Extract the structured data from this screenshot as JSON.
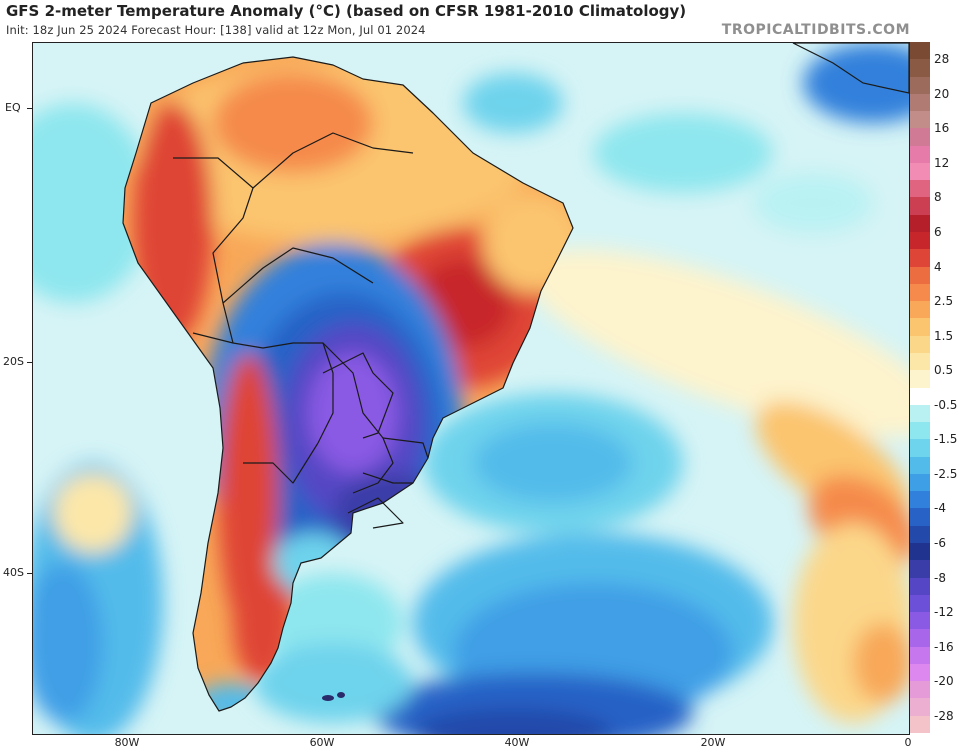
{
  "header": {
    "title": "GFS 2-meter Temperature Anomaly (°C) (based on CFSR 1981-2010 Climatology)",
    "subtitle": "Init: 18z Jun 25 2024   Forecast Hour: [138]   valid at 12z Mon, Jul 01 2024",
    "brand": "TROPICALTIDBITS.COM"
  },
  "map": {
    "lat_labels": [
      "EQ",
      "20S",
      "40S"
    ],
    "lon_labels": [
      "80W",
      "60W",
      "40W",
      "20W",
      "0"
    ],
    "lat_range": [
      -56,
      10
    ],
    "lon_range": [
      -90,
      0
    ]
  },
  "colorbar": {
    "labels": [
      "28",
      "20",
      "16",
      "12",
      "8",
      "6",
      "4",
      "2.5",
      "1.5",
      "0.5",
      "-0.5",
      "-1.5",
      "-2.5",
      "-4",
      "-6",
      "-8",
      "-12",
      "-16",
      "-20",
      "-28"
    ],
    "colors": [
      "#7a4a33",
      "#8a5a45",
      "#9c6b5c",
      "#b07b72",
      "#c28c88",
      "#d07a96",
      "#e67aa8",
      "#f28cb4",
      "#e06480",
      "#cc3f52",
      "#b51f2a",
      "#c7262a",
      "#df4536",
      "#ec6d3f",
      "#f58a4c",
      "#f8a858",
      "#fbc46e",
      "#fbd78a",
      "#fce7a8",
      "#fdf3cc",
      "#ffffff",
      "#b9f1f3",
      "#8ee6ee",
      "#6ed3ec",
      "#53bbea",
      "#3f9fe6",
      "#3180db",
      "#2862c6",
      "#2349aa",
      "#20338e",
      "#3a3ca8",
      "#5446c4",
      "#6d50d8",
      "#8a5ae4",
      "#a866ea",
      "#c677ee",
      "#dc88ee",
      "#e49bd8",
      "#ecafd2",
      "#f4c3ca"
    ]
  }
}
